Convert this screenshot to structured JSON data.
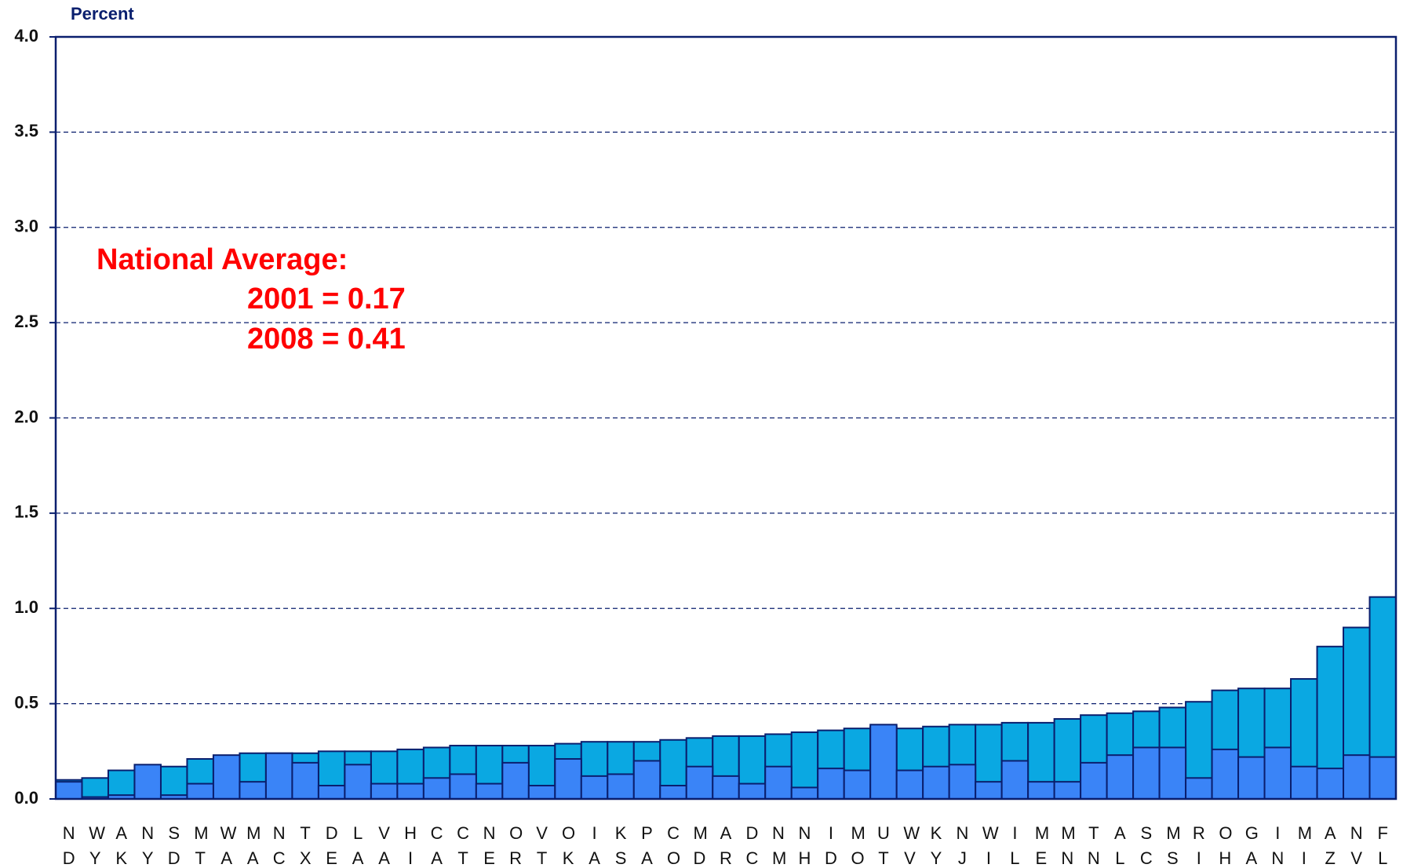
{
  "chart_data": {
    "type": "bar",
    "y_label": "Percent",
    "categories": [
      "ND",
      "WY",
      "AK",
      "NY",
      "SD",
      "MT",
      "WA",
      "MA",
      "NC",
      "TX",
      "DE",
      "LA",
      "VA",
      "HI",
      "CA",
      "CT",
      "NE",
      "OR",
      "VT",
      "OK",
      "IA",
      "KS",
      "PA",
      "CO",
      "MD",
      "AR",
      "DC",
      "NM",
      "NH",
      "ID",
      "MO",
      "UT",
      "WV",
      "KY",
      "NJ",
      "WI",
      "IL",
      "ME",
      "MN",
      "TN",
      "AL",
      "SC",
      "MS",
      "RI",
      "OH",
      "GA",
      "IN",
      "MI",
      "AZ",
      "NV",
      "FL"
    ],
    "series": [
      {
        "color": "#0aa8e2",
        "values": [
          0.1,
          0.11,
          0.15,
          0.17,
          0.17,
          0.21,
          0.22,
          0.24,
          0.24,
          0.24,
          0.25,
          0.25,
          0.25,
          0.26,
          0.27,
          0.28,
          0.28,
          0.28,
          0.28,
          0.29,
          0.3,
          0.3,
          0.3,
          0.31,
          0.32,
          0.33,
          0.33,
          0.34,
          0.35,
          0.36,
          0.37,
          0.38,
          0.37,
          0.38,
          0.39,
          0.39,
          0.4,
          0.4,
          0.42,
          0.44,
          0.45,
          0.46,
          0.48,
          0.51,
          0.57,
          0.58,
          0.58,
          0.63,
          0.8,
          0.9,
          1.06
        ]
      },
      {
        "color": "#3a84f7",
        "values": [
          0.09,
          0.01,
          0.02,
          0.18,
          0.02,
          0.08,
          0.23,
          0.09,
          0.24,
          0.19,
          0.07,
          0.18,
          0.08,
          0.08,
          0.11,
          0.13,
          0.08,
          0.19,
          0.07,
          0.21,
          0.12,
          0.13,
          0.2,
          0.07,
          0.17,
          0.12,
          0.08,
          0.17,
          0.06,
          0.16,
          0.15,
          0.39,
          0.15,
          0.17,
          0.18,
          0.09,
          0.2,
          0.09,
          0.09,
          0.19,
          0.23,
          0.27,
          0.27,
          0.11,
          0.26,
          0.22,
          0.27,
          0.17,
          0.16,
          0.23,
          0.22
        ]
      }
    ],
    "annotations": [
      "National Average:",
      "2001 = 0.17",
      "2008 = 0.41"
    ],
    "ylim": [
      0,
      4
    ],
    "yticks": [
      {
        "value": 0,
        "label": "0.0"
      },
      {
        "value": 0.5,
        "label": "0.5"
      },
      {
        "value": 1,
        "label": "1.0"
      },
      {
        "value": 1.5,
        "label": "1.5"
      },
      {
        "value": 2,
        "label": "2.0"
      },
      {
        "value": 2.5,
        "label": "2.5"
      },
      {
        "value": 3,
        "label": "3.0"
      },
      {
        "value": 3.5,
        "label": "3.5"
      },
      {
        "value": 4,
        "label": "4.0"
      }
    ],
    "grid": true
  }
}
